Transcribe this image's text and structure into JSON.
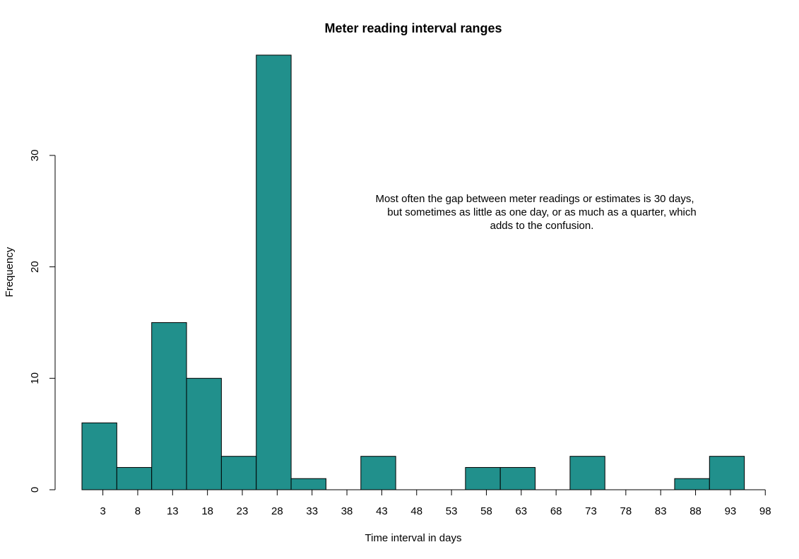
{
  "chart_data": {
    "type": "bar",
    "title": "Meter reading interval ranges",
    "xlabel": "Time interval in days",
    "ylabel": "Frequency",
    "bin_edges": [
      0,
      5,
      10,
      15,
      20,
      25,
      30,
      35,
      40,
      45,
      50,
      55,
      60,
      65,
      70,
      75,
      80,
      85,
      90,
      95
    ],
    "values": [
      6,
      2,
      15,
      10,
      3,
      39,
      1,
      0,
      3,
      0,
      0,
      2,
      2,
      0,
      3,
      0,
      0,
      1,
      3
    ],
    "x_ticks": [
      "3",
      "8",
      "13",
      "18",
      "23",
      "28",
      "33",
      "38",
      "43",
      "48",
      "53",
      "58",
      "63",
      "68",
      "73",
      "78",
      "83",
      "88",
      "93",
      "98"
    ],
    "y_ticks": [
      "0",
      "10",
      "20",
      "30"
    ],
    "ylim": [
      0,
      39
    ],
    "bar_color": "#21908C",
    "annotation": [
      "Most often the gap between meter readings or estimates is 30 days,",
      "but sometimes as little as one day, or as much as a quarter, which",
      "adds to the confusion."
    ],
    "grid": false
  }
}
